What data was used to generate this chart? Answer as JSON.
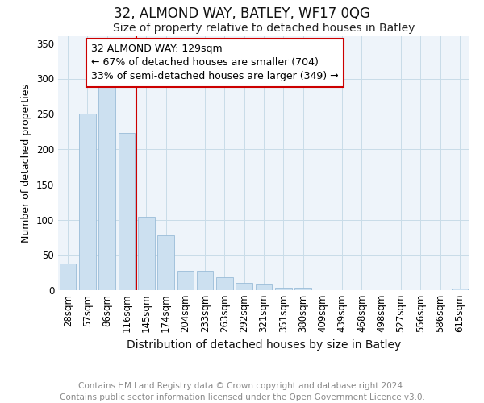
{
  "title": "32, ALMOND WAY, BATLEY, WF17 0QG",
  "subtitle": "Size of property relative to detached houses in Batley",
  "xlabel": "Distribution of detached houses by size in Batley",
  "ylabel": "Number of detached properties",
  "categories": [
    "28sqm",
    "57sqm",
    "86sqm",
    "116sqm",
    "145sqm",
    "174sqm",
    "204sqm",
    "233sqm",
    "263sqm",
    "292sqm",
    "321sqm",
    "351sqm",
    "380sqm",
    "409sqm",
    "439sqm",
    "468sqm",
    "498sqm",
    "527sqm",
    "556sqm",
    "586sqm",
    "615sqm"
  ],
  "values": [
    38,
    250,
    290,
    223,
    104,
    78,
    28,
    28,
    18,
    10,
    9,
    4,
    3,
    0,
    0,
    0,
    0,
    0,
    0,
    0,
    2
  ],
  "bar_color": "#cce0f0",
  "bar_edge_color": "#9abcd8",
  "vline_color": "#cc0000",
  "ylim": [
    0,
    360
  ],
  "yticks": [
    0,
    50,
    100,
    150,
    200,
    250,
    300,
    350
  ],
  "annotation_text": "32 ALMOND WAY: 129sqm\n← 67% of detached houses are smaller (704)\n33% of semi-detached houses are larger (349) →",
  "annotation_box_color": "#ffffff",
  "annotation_box_edge": "#cc0000",
  "footer_text": "Contains HM Land Registry data © Crown copyright and database right 2024.\nContains public sector information licensed under the Open Government Licence v3.0.",
  "title_fontsize": 12,
  "subtitle_fontsize": 10,
  "xlabel_fontsize": 10,
  "ylabel_fontsize": 9,
  "tick_fontsize": 8.5,
  "annotation_fontsize": 9,
  "footer_fontsize": 7.5,
  "bg_color": "#eef4fa"
}
